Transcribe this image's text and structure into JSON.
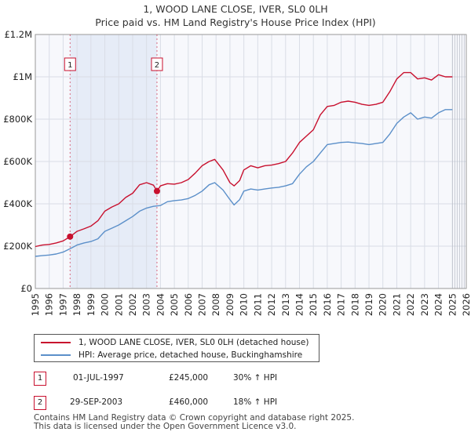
{
  "chart_data": {
    "type": "line",
    "title": "1, WOOD LANE CLOSE, IVER, SL0 0LH",
    "subtitle": "Price paid vs. HM Land Registry's House Price Index (HPI)",
    "xlabel": "",
    "ylabel": "",
    "xlim": [
      1995.0,
      2026.0
    ],
    "ylim": [
      0,
      1200000
    ],
    "yticks": [
      0,
      200000,
      400000,
      600000,
      800000,
      1000000,
      1200000
    ],
    "ytick_labels": [
      "£0",
      "£200K",
      "£400K",
      "£600K",
      "£800K",
      "£1M",
      "£1.2M"
    ],
    "xticks": [
      1995,
      1996,
      1997,
      1998,
      1999,
      2000,
      2001,
      2002,
      2003,
      2004,
      2005,
      2006,
      2007,
      2008,
      2009,
      2010,
      2011,
      2012,
      2013,
      2014,
      2015,
      2016,
      2017,
      2018,
      2019,
      2020,
      2021,
      2022,
      2023,
      2024,
      2025,
      2026
    ],
    "grid": true,
    "shaded_span": [
      1997.5,
      2003.75
    ],
    "forecast_from": 2025.0,
    "series": [
      {
        "name": "1, WOOD LANE CLOSE, IVER, SL0 0LH (detached house)",
        "color": "#c8102e",
        "x": [
          1995.0,
          1995.5,
          1996.0,
          1996.5,
          1997.0,
          1997.5,
          1998.0,
          1998.5,
          1999.0,
          1999.5,
          2000.0,
          2000.5,
          2001.0,
          2001.5,
          2002.0,
          2002.5,
          2003.0,
          2003.5,
          2003.75,
          2004.0,
          2004.5,
          2005.0,
          2005.5,
          2006.0,
          2006.5,
          2007.0,
          2007.5,
          2007.9,
          2008.5,
          2009.0,
          2009.3,
          2009.7,
          2010.0,
          2010.5,
          2011.0,
          2011.5,
          2012.0,
          2012.5,
          2013.0,
          2013.5,
          2014.0,
          2014.5,
          2015.0,
          2015.5,
          2016.0,
          2016.5,
          2017.0,
          2017.5,
          2018.0,
          2018.5,
          2019.0,
          2019.5,
          2020.0,
          2020.5,
          2021.0,
          2021.5,
          2022.0,
          2022.5,
          2023.0,
          2023.5,
          2024.0,
          2024.5,
          2025.0
        ],
        "values": [
          198000,
          205000,
          208000,
          215000,
          225000,
          245000,
          270000,
          282000,
          295000,
          320000,
          365000,
          385000,
          400000,
          430000,
          450000,
          490000,
          500000,
          488000,
          460000,
          485000,
          495000,
          493000,
          500000,
          515000,
          545000,
          580000,
          600000,
          610000,
          560000,
          500000,
          485000,
          510000,
          560000,
          580000,
          570000,
          580000,
          583000,
          590000,
          600000,
          640000,
          690000,
          720000,
          750000,
          820000,
          860000,
          865000,
          880000,
          885000,
          880000,
          870000,
          865000,
          870000,
          880000,
          930000,
          990000,
          1020000,
          1020000,
          990000,
          995000,
          985000,
          1010000,
          1000000,
          1000000
        ]
      },
      {
        "name": "HPI: Average price, detached house, Buckinghamshire",
        "color": "#5b8fc9",
        "x": [
          1995.0,
          1995.5,
          1996.0,
          1996.5,
          1997.0,
          1997.5,
          1998.0,
          1998.5,
          1999.0,
          1999.5,
          2000.0,
          2000.5,
          2001.0,
          2001.5,
          2002.0,
          2002.5,
          2003.0,
          2003.5,
          2004.0,
          2004.5,
          2005.0,
          2005.5,
          2006.0,
          2006.5,
          2007.0,
          2007.5,
          2007.9,
          2008.5,
          2009.0,
          2009.3,
          2009.7,
          2010.0,
          2010.5,
          2011.0,
          2011.5,
          2012.0,
          2012.5,
          2013.0,
          2013.5,
          2014.0,
          2014.5,
          2015.0,
          2015.5,
          2016.0,
          2016.5,
          2017.0,
          2017.5,
          2018.0,
          2018.5,
          2019.0,
          2019.5,
          2020.0,
          2020.5,
          2021.0,
          2021.5,
          2022.0,
          2022.5,
          2023.0,
          2023.5,
          2024.0,
          2024.5,
          2025.0
        ],
        "values": [
          152000,
          155000,
          158000,
          163000,
          172000,
          188000,
          205000,
          215000,
          222000,
          235000,
          270000,
          285000,
          300000,
          320000,
          340000,
          365000,
          380000,
          388000,
          392000,
          410000,
          415000,
          418000,
          425000,
          440000,
          460000,
          490000,
          500000,
          465000,
          420000,
          395000,
          420000,
          460000,
          470000,
          465000,
          470000,
          475000,
          478000,
          485000,
          495000,
          540000,
          575000,
          600000,
          640000,
          680000,
          685000,
          690000,
          692000,
          688000,
          685000,
          680000,
          685000,
          690000,
          730000,
          780000,
          810000,
          830000,
          800000,
          810000,
          805000,
          830000,
          845000,
          845000
        ]
      }
    ],
    "annotations": [
      {
        "label": "1",
        "x": 1997.5,
        "value": 245000
      },
      {
        "label": "2",
        "x": 2003.75,
        "value": 460000
      }
    ]
  },
  "legend": {
    "items": [
      {
        "label": "1, WOOD LANE CLOSE, IVER, SL0 0LH (detached house)",
        "color": "#c8102e"
      },
      {
        "label": "HPI: Average price, detached house, Buckinghamshire",
        "color": "#5b8fc9"
      }
    ]
  },
  "sales": [
    {
      "num": "1",
      "date": "01-JUL-1997",
      "price": "£245,000",
      "hpi": "30% ↑ HPI"
    },
    {
      "num": "2",
      "date": "29-SEP-2003",
      "price": "£460,000",
      "hpi": "18% ↑ HPI"
    }
  ],
  "footer": {
    "line1": "Contains HM Land Registry data © Crown copyright and database right 2025.",
    "line2": "This data is licensed under the Open Government Licence v3.0."
  }
}
